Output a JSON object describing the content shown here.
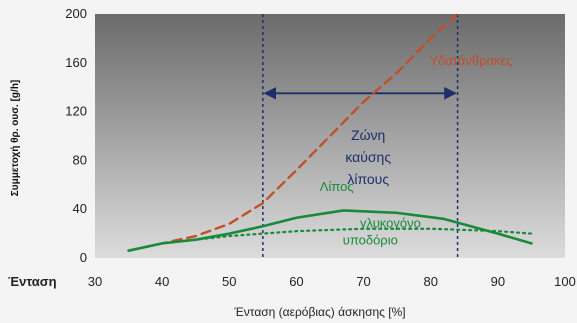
{
  "chart_data": {
    "type": "line",
    "xlabel": "Ένταση (αερόβιας) άσκησης [%]",
    "ylabel": "Συμμετοχή θρ. ουσ. [g/h]",
    "x_axis_row_label": "Ένταση",
    "xlim": [
      30,
      100
    ],
    "ylim": [
      0,
      200
    ],
    "xticks": [
      30,
      40,
      50,
      60,
      70,
      80,
      90,
      100
    ],
    "yticks": [
      0,
      40,
      80,
      120,
      160,
      200
    ],
    "grid": false,
    "series": [
      {
        "name": "Υδατάνθρακες",
        "style": "dashed",
        "color": "#c0502a",
        "x": [
          35,
          40,
          45,
          50,
          55,
          60,
          65,
          70,
          75,
          80,
          84
        ],
        "y": [
          6,
          12,
          18,
          28,
          45,
          72,
          100,
          128,
          152,
          180,
          200
        ]
      },
      {
        "name": "Λίπος",
        "style": "solid",
        "color": "#1a8a3a",
        "x": [
          35,
          40,
          45,
          50,
          55,
          60,
          67,
          75,
          82,
          90,
          95
        ],
        "y": [
          6,
          12,
          15,
          20,
          26,
          33,
          39,
          37,
          32,
          20,
          12
        ]
      },
      {
        "name": "γλυκογόνο",
        "style": "dotted",
        "color": "#1a8a3a",
        "x": [
          35,
          40,
          50,
          60,
          70,
          80,
          90,
          95
        ],
        "y": [
          6,
          12,
          18,
          22,
          24,
          24,
          22,
          20
        ]
      },
      {
        "name": "υποδόριο",
        "style": "dotted",
        "color": "#1a8a3a",
        "x": [],
        "y": []
      }
    ],
    "zone": {
      "label_lines": [
        "Ζώνη",
        "καύσης",
        "λίπους"
      ],
      "x_start": 55,
      "x_end": 84,
      "arrow_y": 135,
      "color": "#1c2f6b"
    },
    "annotations": [
      {
        "text": "Υδατάνθρακες",
        "x": 86,
        "y": 158,
        "color": "#c0502a"
      },
      {
        "text": "Λίπος",
        "x": 66,
        "y": 55,
        "color": "#1a8a3a"
      },
      {
        "text": "γλυκογόνο",
        "x": 74,
        "y": 25,
        "color": "#1a8a3a"
      },
      {
        "text": "υποδόριο",
        "x": 71,
        "y": 11,
        "color": "#1a8a3a"
      }
    ]
  }
}
